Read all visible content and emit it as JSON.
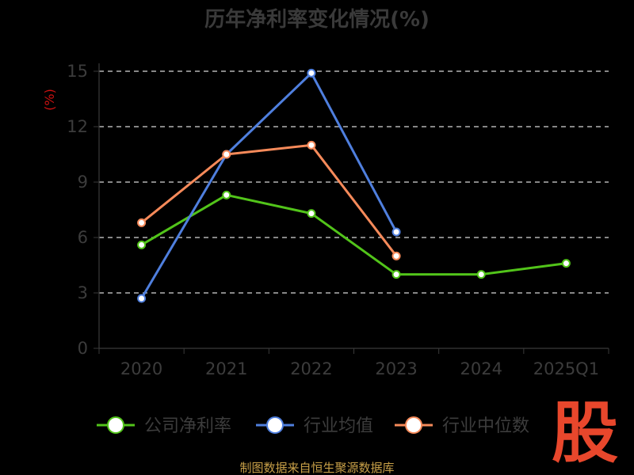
{
  "chart_data": {
    "type": "line",
    "title": "历年净利率变化情况(%)",
    "unit_label": "(%)",
    "categories": [
      "2020",
      "2021",
      "2022",
      "2023",
      "2024",
      "2025Q1"
    ],
    "y_ticks": [
      0,
      3,
      6,
      9,
      12,
      15
    ],
    "ylim": [
      0,
      15
    ],
    "grid": true,
    "legend_position": "bottom",
    "series": [
      {
        "name": "公司净利率",
        "color": "#52c41a",
        "values": [
          5.6,
          8.3,
          7.3,
          4.0,
          4.0,
          4.6
        ]
      },
      {
        "name": "行业均值",
        "color": "#4f7fde",
        "values": [
          2.7,
          10.5,
          14.9,
          6.3,
          null,
          null
        ]
      },
      {
        "name": "行业中位数",
        "color": "#f68a5a",
        "values": [
          6.8,
          10.5,
          11.0,
          5.0,
          null,
          null
        ]
      }
    ]
  },
  "source_text": "制图数据来自恒生聚源数据库",
  "brand_mark": "股"
}
